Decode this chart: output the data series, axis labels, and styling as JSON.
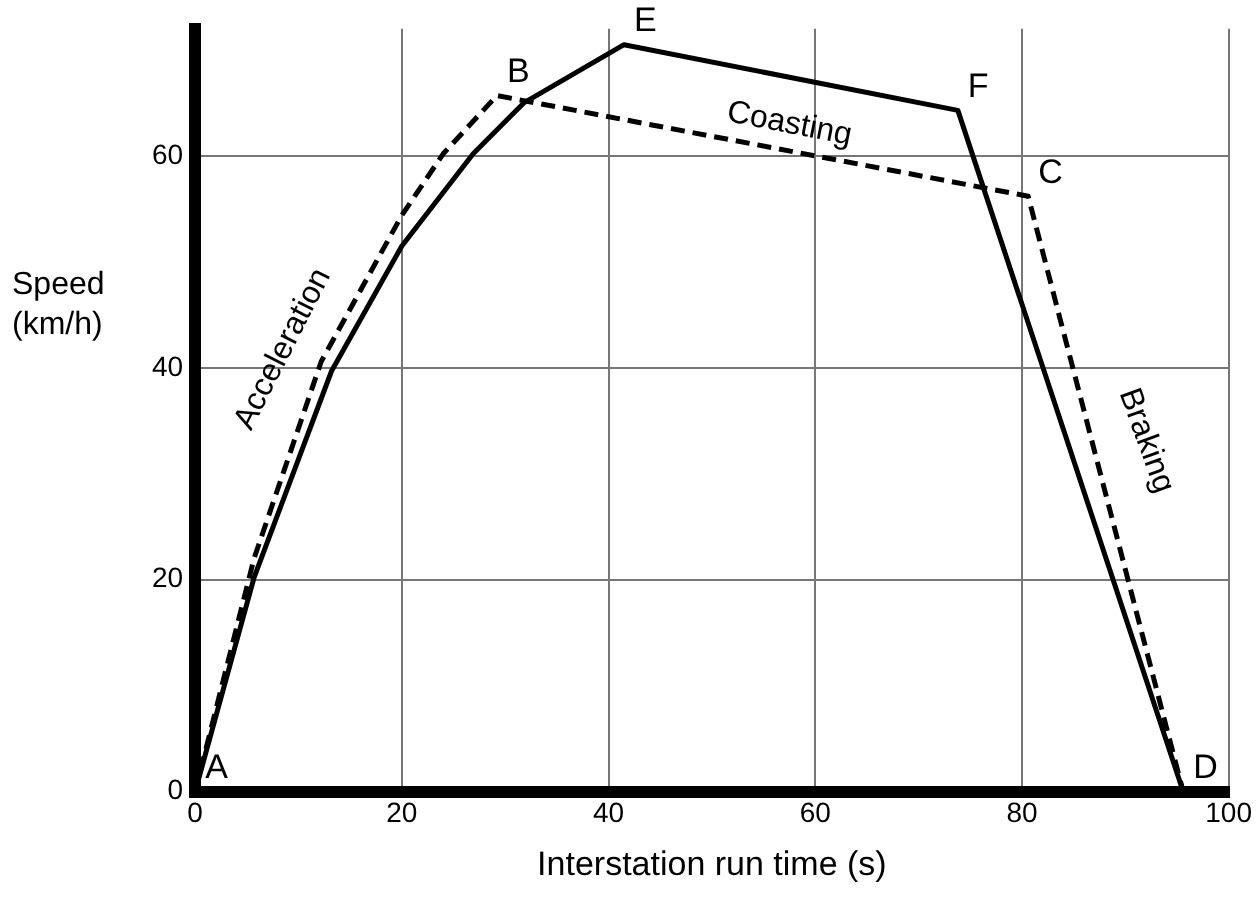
{
  "chart_data": {
    "type": "line",
    "xlabel": "Interstation run time (s)",
    "ylabel": "Speed (km/h)",
    "xlim": [
      0,
      100
    ],
    "xticks": [
      0,
      20,
      40,
      60,
      80,
      100
    ],
    "ylim": [
      0,
      72
    ],
    "yticks": [
      0,
      20,
      40,
      60
    ],
    "grid": true,
    "legend": false,
    "marker": "none",
    "series": [
      {
        "color": "#000000",
        "line_style": "solid",
        "x": [
          0,
          5.7,
          13.2,
          20,
          26.9,
          31.8,
          41.5,
          73.8,
          95.6
        ],
        "values": [
          0,
          20.2,
          39.7,
          51.5,
          60.2,
          65,
          70.5,
          64.3,
          0
        ]
      },
      {
        "color": "#000000",
        "line_style": "dashed",
        "x": [
          0,
          5.7,
          12.2,
          20,
          24,
          29.2,
          80.6,
          95.6
        ],
        "values": [
          0,
          22,
          40.6,
          54.4,
          60.2,
          65.7,
          56.2,
          0
        ]
      }
    ],
    "annotations": [
      {
        "text": "A",
        "x": 0,
        "y": 0
      },
      {
        "text": "B",
        "x": 29.2,
        "y": 65.7
      },
      {
        "text": "C",
        "x": 80.6,
        "y": 56.2
      },
      {
        "text": "D",
        "x": 95.6,
        "y": 0
      },
      {
        "text": "E",
        "x": 41.5,
        "y": 70.5
      },
      {
        "text": "F",
        "x": 73.8,
        "y": 64.3
      },
      "Acceleration",
      "Coasting",
      "Braking"
    ]
  }
}
